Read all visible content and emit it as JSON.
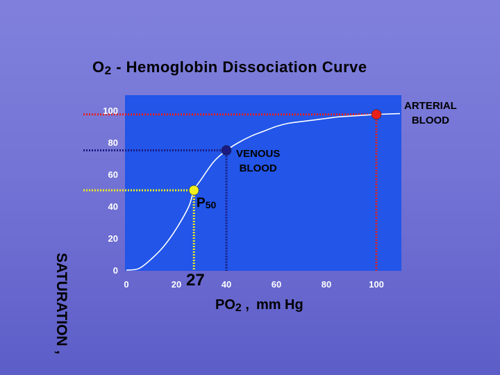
{
  "title": {
    "main": "O",
    "sub": "2",
    "rest": " - Hemoglobin  Dissociation  Curve"
  },
  "ylabel": "SATURATION ,",
  "xlabel": {
    "main": "PO",
    "sub": "2",
    "rest": " ,",
    "unit": "mm Hg"
  },
  "annotations": {
    "arterial": [
      "ARTERIAL",
      "BLOOD"
    ],
    "venous": [
      "VENOUS",
      "BLOOD"
    ],
    "p50_main": "P",
    "p50_sub": "50",
    "p50_value": "27"
  },
  "colors": {
    "plot_bg": "#2255e8",
    "curve": "#ffffff",
    "arterial": "#e8201a",
    "venous": "#1a1a80",
    "p50": "#f0f020",
    "tick_text": "#ffffff"
  },
  "chart_data": {
    "type": "line",
    "title": "O2 - Hemoglobin Dissociation Curve",
    "xlabel": "PO2 , mm Hg",
    "ylabel": "SATURATION ,",
    "xlim": [
      0,
      100
    ],
    "ylim": [
      0,
      100
    ],
    "xticks": [
      0,
      20,
      40,
      60,
      80,
      100
    ],
    "yticks": [
      0,
      20,
      40,
      60,
      80,
      100
    ],
    "grid": false,
    "series": [
      {
        "x": [
          0,
          5,
          10,
          15,
          20,
          25,
          27,
          30,
          35,
          40,
          45,
          50,
          55,
          60,
          65,
          70,
          75,
          80,
          85,
          90,
          95,
          100,
          110
        ],
        "y": [
          0,
          1,
          7,
          15,
          26,
          40,
          50,
          57,
          68,
          75,
          80,
          84,
          87,
          90,
          92,
          93,
          94,
          95,
          96,
          96.5,
          97,
          97.5,
          98
        ]
      }
    ],
    "points": [
      {
        "label": "ARTERIAL BLOOD",
        "x": 100,
        "y": 97.5,
        "color": "#e8201a"
      },
      {
        "label": "VENOUS BLOOD",
        "x": 40,
        "y": 75,
        "color": "#1a1a80"
      },
      {
        "label": "P50",
        "x": 27,
        "y": 50,
        "color": "#f0f020"
      }
    ]
  }
}
